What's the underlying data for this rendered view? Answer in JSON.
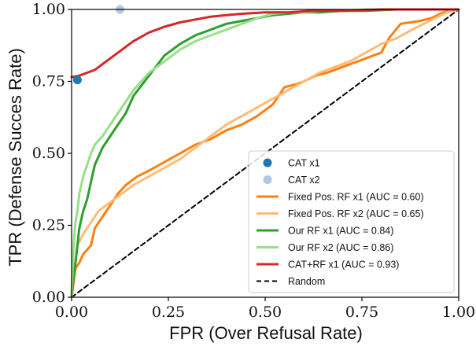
{
  "chart_data": {
    "type": "line",
    "xlabel": "FPR (Over Refusal Rate)",
    "ylabel": "TPR (Defense Succes Rate)",
    "xlim": [
      0,
      1
    ],
    "ylim": [
      0,
      1
    ],
    "x_ticks": [
      "0.00",
      "0.25",
      "0.50",
      "0.75",
      "1.00"
    ],
    "y_ticks": [
      "0.00",
      "0.25",
      "0.50",
      "0.75",
      "1.00"
    ],
    "grid": false,
    "legend_position": "lower right",
    "points": [
      {
        "name": "CAT x1",
        "color": "#1f77b4",
        "x": 0.015,
        "y": 0.755
      },
      {
        "name": "CAT x2",
        "color": "#aec7e8",
        "x": 0.125,
        "y": 1.0
      }
    ],
    "series": [
      {
        "name": "Fixed Pos. RF x1 (AUC = 0.60)",
        "color": "#ff7f0e",
        "dash": "",
        "x": [
          0.0,
          0.005,
          0.01,
          0.02,
          0.03,
          0.05,
          0.06,
          0.08,
          0.1,
          0.12,
          0.14,
          0.17,
          0.2,
          0.24,
          0.28,
          0.32,
          0.36,
          0.4,
          0.44,
          0.48,
          0.5,
          0.52,
          0.55,
          0.58,
          0.6,
          0.63,
          0.66,
          0.7,
          0.74,
          0.8,
          0.82,
          0.85,
          0.9,
          0.93,
          0.96,
          1.0
        ],
        "y": [
          0.0,
          0.05,
          0.1,
          0.12,
          0.15,
          0.18,
          0.24,
          0.28,
          0.32,
          0.36,
          0.39,
          0.42,
          0.44,
          0.47,
          0.5,
          0.53,
          0.55,
          0.58,
          0.6,
          0.63,
          0.65,
          0.67,
          0.73,
          0.74,
          0.75,
          0.77,
          0.78,
          0.8,
          0.82,
          0.85,
          0.9,
          0.95,
          0.96,
          0.97,
          0.99,
          1.0
        ]
      },
      {
        "name": "Fixed Pos. RF x2 (AUC = 0.65)",
        "color": "#ffbb78",
        "dash": "",
        "x": [
          0.0,
          0.005,
          0.01,
          0.015,
          0.03,
          0.05,
          0.07,
          0.1,
          0.13,
          0.16,
          0.2,
          0.24,
          0.28,
          0.32,
          0.36,
          0.4,
          0.44,
          0.48,
          0.52,
          0.56,
          0.6,
          0.64,
          0.68,
          0.72,
          0.76,
          0.8,
          0.84,
          0.88,
          0.91,
          0.94,
          0.97,
          1.0
        ],
        "y": [
          0.0,
          0.08,
          0.12,
          0.18,
          0.22,
          0.26,
          0.3,
          0.33,
          0.36,
          0.39,
          0.42,
          0.45,
          0.48,
          0.52,
          0.56,
          0.6,
          0.63,
          0.66,
          0.69,
          0.72,
          0.75,
          0.78,
          0.8,
          0.82,
          0.85,
          0.88,
          0.9,
          0.93,
          0.95,
          0.97,
          0.99,
          1.0
        ]
      },
      {
        "name": "Our RF x1 (AUC = 0.84)",
        "color": "#2ca02c",
        "dash": "",
        "x": [
          0.0,
          0.003,
          0.006,
          0.01,
          0.015,
          0.02,
          0.03,
          0.04,
          0.05,
          0.06,
          0.08,
          0.1,
          0.12,
          0.14,
          0.16,
          0.2,
          0.24,
          0.28,
          0.32,
          0.36,
          0.4,
          0.44,
          0.48,
          0.52,
          0.56,
          0.6,
          0.64,
          0.7,
          0.76,
          0.84,
          0.9,
          1.0
        ],
        "y": [
          0.0,
          0.04,
          0.08,
          0.12,
          0.18,
          0.24,
          0.3,
          0.34,
          0.4,
          0.46,
          0.52,
          0.56,
          0.6,
          0.64,
          0.7,
          0.77,
          0.84,
          0.88,
          0.91,
          0.93,
          0.95,
          0.96,
          0.97,
          0.98,
          0.985,
          0.99,
          0.99,
          0.995,
          0.995,
          1.0,
          1.0,
          1.0
        ]
      },
      {
        "name": "Our RF x2 (AUC = 0.86)",
        "color": "#98df8a",
        "dash": "",
        "x": [
          0.0,
          0.003,
          0.006,
          0.01,
          0.015,
          0.02,
          0.03,
          0.04,
          0.05,
          0.06,
          0.08,
          0.1,
          0.12,
          0.14,
          0.16,
          0.2,
          0.24,
          0.28,
          0.32,
          0.36,
          0.4,
          0.44,
          0.48,
          0.52,
          0.56,
          0.6,
          0.64,
          0.7,
          0.76,
          0.84,
          0.9,
          1.0
        ],
        "y": [
          0.0,
          0.12,
          0.2,
          0.26,
          0.3,
          0.36,
          0.42,
          0.46,
          0.5,
          0.53,
          0.56,
          0.6,
          0.64,
          0.68,
          0.72,
          0.78,
          0.82,
          0.86,
          0.89,
          0.91,
          0.93,
          0.95,
          0.97,
          0.985,
          0.99,
          0.99,
          0.995,
          0.995,
          1.0,
          1.0,
          1.0,
          1.0
        ]
      },
      {
        "name": "CAT+RF x1 (AUC = 0.93)",
        "color": "#d62728",
        "dash": "",
        "x": [
          0.0,
          0.02,
          0.04,
          0.06,
          0.08,
          0.1,
          0.12,
          0.14,
          0.16,
          0.2,
          0.24,
          0.28,
          0.32,
          0.36,
          0.4,
          0.44,
          0.5,
          0.56,
          0.62,
          0.7,
          0.8,
          0.9,
          1.0
        ],
        "y": [
          0.765,
          0.77,
          0.78,
          0.79,
          0.81,
          0.83,
          0.85,
          0.87,
          0.89,
          0.92,
          0.94,
          0.955,
          0.965,
          0.975,
          0.98,
          0.985,
          0.99,
          0.99,
          0.995,
          0.995,
          1.0,
          1.0,
          1.0
        ]
      },
      {
        "name": "Random",
        "color": "#000000",
        "dash": "6,4",
        "x": [
          0,
          1
        ],
        "y": [
          0,
          1
        ]
      }
    ]
  }
}
